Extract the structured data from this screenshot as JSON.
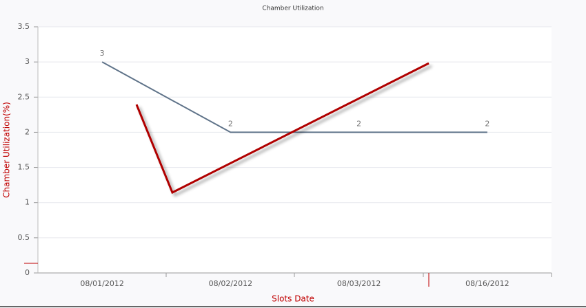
{
  "chart_data": {
    "type": "line",
    "title": "Chamber Utilization",
    "x_label": "Slots Date",
    "y_label": "Chamber Utilization(%)",
    "categories": [
      "08/01/2012",
      "08/02/2012",
      "08/03/2012",
      "08/16/2012"
    ],
    "series": [
      {
        "color": "#5f7389",
        "values": [
          3,
          2,
          2,
          2
        ]
      }
    ],
    "ylim": [
      0,
      3.5
    ],
    "yticks": [
      0,
      0.5,
      1,
      1.5,
      2,
      2.5,
      3,
      3.5
    ],
    "grid": true
  }
}
